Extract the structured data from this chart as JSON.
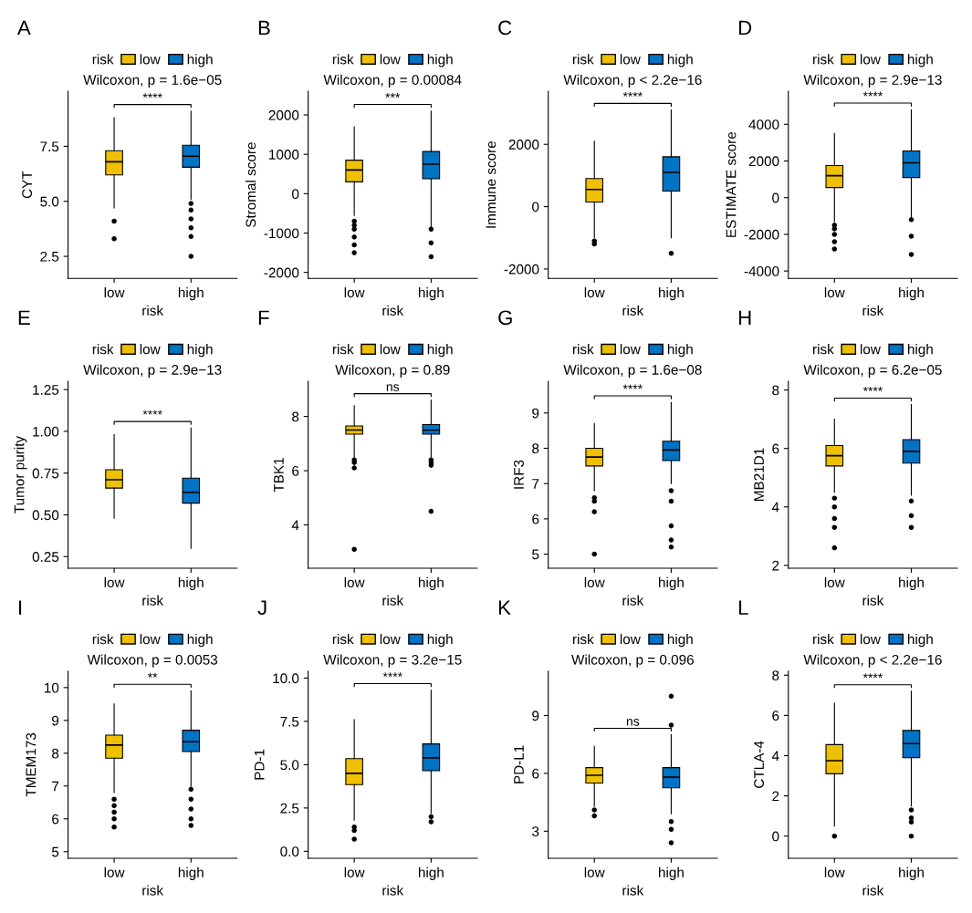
{
  "chart_data": [
    {
      "type": "box",
      "title": "A",
      "subtitle": "Wilcoxon, p = 1.6e−05",
      "xlabel": "risk",
      "ylabel": "CYT",
      "legend_title": "risk",
      "legend": "top",
      "categories": [
        "low",
        "high"
      ],
      "ylim": [
        1.5,
        10.0
      ],
      "yticks": [
        2.5,
        {
          "value": 5,
          "label": "5.0"
        },
        7.5
      ],
      "annotations": [
        "****"
      ],
      "series": [
        {
          "name": "low",
          "color": "#efc000",
          "boxes": [
            {
              "low": 4.7,
              "q1": 6.2,
              "median": 6.8,
              "q3": 7.3,
              "high": 8.8,
              "outliers": [
                4.1,
                3.3
              ]
            },
            null
          ]
        },
        {
          "name": "high",
          "color": "#0073c2",
          "boxes": [
            null,
            {
              "low": 5.1,
              "q1": 6.55,
              "median": 7.05,
              "q3": 7.55,
              "high": 9.1,
              "outliers": [
                4.9,
                4.6,
                4.2,
                3.8,
                3.4,
                2.5
              ]
            }
          ]
        }
      ]
    },
    {
      "type": "box",
      "title": "B",
      "subtitle": "Wilcoxon, p = 0.00084",
      "xlabel": "risk",
      "ylabel": "Stromal score",
      "legend_title": "risk",
      "legend": "top",
      "categories": [
        "low",
        "high"
      ],
      "ylim": [
        -2150,
        2600
      ],
      "yticks": [
        -2000,
        -1000,
        0,
        1000,
        2000
      ],
      "annotations": [
        "***"
      ],
      "series": [
        {
          "name": "low",
          "color": "#efc000",
          "boxes": [
            {
              "low": -550,
              "q1": 300,
              "median": 600,
              "q3": 850,
              "high": 1700,
              "outliers": [
                -700,
                -800,
                -900,
                -1100,
                -1300,
                -1500
              ]
            },
            null
          ]
        },
        {
          "name": "high",
          "color": "#0073c2",
          "boxes": [
            null,
            {
              "low": -850,
              "q1": 380,
              "median": 750,
              "q3": 1070,
              "high": 2100,
              "outliers": [
                -900,
                -1250,
                -1600
              ]
            }
          ]
        }
      ]
    },
    {
      "type": "box",
      "title": "C",
      "subtitle": "Wilcoxon, p < 2.2e−16",
      "xlabel": "risk",
      "ylabel": "Immune score",
      "legend_title": "risk",
      "legend": "top",
      "categories": [
        "low",
        "high"
      ],
      "ylim": [
        -2300,
        3700
      ],
      "yticks": [
        -2000,
        0,
        2000
      ],
      "annotations": [
        "****"
      ],
      "series": [
        {
          "name": "low",
          "color": "#efc000",
          "boxes": [
            {
              "low": -1000,
              "q1": 150,
              "median": 550,
              "q3": 900,
              "high": 2100,
              "outliers": [
                -1100,
                -1200
              ]
            },
            null
          ]
        },
        {
          "name": "high",
          "color": "#0073c2",
          "boxes": [
            null,
            {
              "low": -1000,
              "q1": 500,
              "median": 1100,
              "q3": 1600,
              "high": 3100,
              "outliers": [
                -1500
              ]
            }
          ]
        }
      ]
    },
    {
      "type": "box",
      "title": "D",
      "subtitle": "Wilcoxon, p = 2.9e−13",
      "xlabel": "risk",
      "ylabel": "ESTIMATE score",
      "legend_title": "risk",
      "legend": "top",
      "categories": [
        "low",
        "high"
      ],
      "ylim": [
        -4400,
        5800
      ],
      "yticks": [
        -4000,
        -2000,
        0,
        2000,
        4000
      ],
      "annotations": [
        "****"
      ],
      "series": [
        {
          "name": "low",
          "color": "#efc000",
          "boxes": [
            {
              "low": -1300,
              "q1": 550,
              "median": 1200,
              "q3": 1750,
              "high": 3500,
              "outliers": [
                -1500,
                -1700,
                -2000,
                -2400,
                -2800
              ]
            },
            null
          ]
        },
        {
          "name": "high",
          "color": "#0073c2",
          "boxes": [
            null,
            {
              "low": -1100,
              "q1": 1100,
              "median": 1900,
              "q3": 2550,
              "high": 4800,
              "outliers": [
                -1200,
                -2100,
                -3100
              ]
            }
          ]
        }
      ]
    },
    {
      "type": "box",
      "title": "E",
      "subtitle": "Wilcoxon, p = 2.9e−13",
      "xlabel": "risk",
      "ylabel": "Tumor purity",
      "legend_title": "risk",
      "legend": "top",
      "categories": [
        "low",
        "high"
      ],
      "ylim": [
        0.18,
        1.3
      ],
      "yticks": [
        0.25,
        {
          "value": 0.5,
          "label": "0.50"
        },
        0.75,
        {
          "value": 1,
          "label": "1.00"
        },
        1.25
      ],
      "annotations": [
        "****"
      ],
      "series": [
        {
          "name": "low",
          "color": "#efc000",
          "boxes": [
            {
              "low": 0.48,
              "q1": 0.66,
              "median": 0.71,
              "q3": 0.77,
              "high": 0.98
            },
            null
          ]
        },
        {
          "name": "high",
          "color": "#0073c2",
          "boxes": [
            null,
            {
              "low": 0.3,
              "q1": 0.57,
              "median": 0.635,
              "q3": 0.72,
              "high": 1.02
            }
          ]
        }
      ]
    },
    {
      "type": "box",
      "title": "F",
      "subtitle": "Wilcoxon, p = 0.89",
      "xlabel": "risk",
      "ylabel": "TBK1",
      "legend_title": "risk",
      "legend": "top",
      "categories": [
        "low",
        "high"
      ],
      "ylim": [
        2.4,
        9.3
      ],
      "yticks": [
        4,
        6,
        8
      ],
      "annotations": [
        "ns"
      ],
      "series": [
        {
          "name": "low",
          "color": "#efc000",
          "boxes": [
            {
              "low": 6.5,
              "q1": 7.35,
              "median": 7.5,
              "q3": 7.65,
              "high": 8.4,
              "outliers": [
                6.4,
                6.3,
                6.1,
                3.1
              ]
            },
            null
          ]
        },
        {
          "name": "high",
          "color": "#0073c2",
          "boxes": [
            null,
            {
              "low": 6.5,
              "q1": 7.35,
              "median": 7.5,
              "q3": 7.7,
              "high": 8.6,
              "outliers": [
                6.4,
                6.3,
                6.2,
                4.5
              ]
            }
          ]
        }
      ]
    },
    {
      "type": "box",
      "title": "G",
      "subtitle": "Wilcoxon, p = 1.6e−08",
      "xlabel": "risk",
      "ylabel": "IRF3",
      "legend_title": "risk",
      "legend": "top",
      "categories": [
        "low",
        "high"
      ],
      "ylim": [
        4.6,
        9.9
      ],
      "yticks": [
        5,
        6,
        7,
        8,
        9
      ],
      "annotations": [
        "****"
      ],
      "series": [
        {
          "name": "low",
          "color": "#efc000",
          "boxes": [
            {
              "low": 6.8,
              "q1": 7.5,
              "median": 7.75,
              "q3": 8.0,
              "high": 8.7,
              "outliers": [
                6.6,
                6.5,
                6.2,
                5.0
              ]
            },
            null
          ]
        },
        {
          "name": "high",
          "color": "#0073c2",
          "boxes": [
            null,
            {
              "low": 7.0,
              "q1": 7.65,
              "median": 7.95,
              "q3": 8.2,
              "high": 9.3,
              "outliers": [
                6.8,
                6.5,
                5.8,
                5.4,
                5.2
              ]
            }
          ]
        }
      ]
    },
    {
      "type": "box",
      "title": "H",
      "subtitle": "Wilcoxon, p = 6.2e−05",
      "xlabel": "risk",
      "ylabel": "MB21D1",
      "legend_title": "risk",
      "legend": "top",
      "categories": [
        "low",
        "high"
      ],
      "ylim": [
        1.9,
        8.3
      ],
      "yticks": [
        2,
        4,
        6,
        8
      ],
      "annotations": [
        "****"
      ],
      "series": [
        {
          "name": "low",
          "color": "#efc000",
          "boxes": [
            {
              "low": 4.5,
              "q1": 5.4,
              "median": 5.75,
              "q3": 6.1,
              "high": 7.0,
              "outliers": [
                4.3,
                4.0,
                3.6,
                3.3,
                2.6
              ]
            },
            null
          ]
        },
        {
          "name": "high",
          "color": "#0073c2",
          "boxes": [
            null,
            {
              "low": 4.4,
              "q1": 5.5,
              "median": 5.9,
              "q3": 6.3,
              "high": 7.5,
              "outliers": [
                4.2,
                3.7,
                3.3
              ]
            }
          ]
        }
      ]
    },
    {
      "type": "box",
      "title": "I",
      "subtitle": "Wilcoxon, p = 0.0053",
      "xlabel": "risk",
      "ylabel": "TMEM173",
      "legend_title": "risk",
      "legend": "top",
      "categories": [
        "low",
        "high"
      ],
      "ylim": [
        4.8,
        10.5
      ],
      "yticks": [
        5,
        6,
        7,
        8,
        9,
        10
      ],
      "annotations": [
        "**"
      ],
      "series": [
        {
          "name": "low",
          "color": "#efc000",
          "boxes": [
            {
              "low": 6.8,
              "q1": 7.85,
              "median": 8.25,
              "q3": 8.55,
              "high": 9.5,
              "outliers": [
                6.6,
                6.4,
                6.2,
                6.0,
                5.75
              ]
            },
            null
          ]
        },
        {
          "name": "high",
          "color": "#0073c2",
          "boxes": [
            null,
            {
              "low": 7.0,
              "q1": 8.05,
              "median": 8.35,
              "q3": 8.7,
              "high": 9.9,
              "outliers": [
                6.9,
                6.6,
                6.3,
                6.0,
                5.8
              ]
            }
          ]
        }
      ]
    },
    {
      "type": "box",
      "title": "J",
      "subtitle": "Wilcoxon, p = 3.2e−15",
      "xlabel": "risk",
      "ylabel": "PD-1",
      "legend_title": "risk",
      "legend": "top",
      "categories": [
        "low",
        "high"
      ],
      "ylim": [
        -0.4,
        10.4
      ],
      "yticks": [
        {
          "value": 0,
          "label": "0.0"
        },
        2.5,
        {
          "value": 5,
          "label": "5.0"
        },
        7.5,
        {
          "value": 10,
          "label": "10.0"
        }
      ],
      "annotations": [
        "****"
      ],
      "series": [
        {
          "name": "low",
          "color": "#efc000",
          "boxes": [
            {
              "low": 1.8,
              "q1": 3.85,
              "median": 4.5,
              "q3": 5.35,
              "high": 7.6,
              "outliers": [
                1.4,
                1.2,
                0.7
              ]
            },
            null
          ]
        },
        {
          "name": "high",
          "color": "#0073c2",
          "boxes": [
            null,
            {
              "low": 2.2,
              "q1": 4.65,
              "median": 5.4,
              "q3": 6.2,
              "high": 9.3,
              "outliers": [
                2.0,
                1.7
              ]
            }
          ]
        }
      ]
    },
    {
      "type": "box",
      "title": "K",
      "subtitle": "Wilcoxon, p = 0.096",
      "xlabel": "risk",
      "ylabel": "PD-L1",
      "legend_title": "risk",
      "legend": "top",
      "categories": [
        "low",
        "high"
      ],
      "ylim": [
        1.6,
        11.3
      ],
      "yticks": [
        3,
        6,
        9
      ],
      "annotations": [
        "ns"
      ],
      "series": [
        {
          "name": "low",
          "color": "#efc000",
          "boxes": [
            {
              "low": 4.3,
              "q1": 5.5,
              "median": 5.9,
              "q3": 6.3,
              "high": 7.4,
              "outliers": [
                4.1,
                3.8
              ]
            },
            null
          ]
        },
        {
          "name": "high",
          "color": "#0073c2",
          "boxes": [
            null,
            {
              "low": 3.9,
              "q1": 5.25,
              "median": 5.8,
              "q3": 6.3,
              "high": 8.0,
              "outliers": [
                8.5,
                10.0,
                3.5,
                3.1,
                2.4
              ]
            }
          ]
        }
      ]
    },
    {
      "type": "box",
      "title": "L",
      "subtitle": "Wilcoxon, p < 2.2e−16",
      "xlabel": "risk",
      "ylabel": "CTLA-4",
      "legend_title": "risk",
      "legend": "top",
      "categories": [
        "low",
        "high"
      ],
      "ylim": [
        -1.1,
        8.2
      ],
      "yticks": [
        0,
        2,
        4,
        6,
        8
      ],
      "annotations": [
        "****"
      ],
      "series": [
        {
          "name": "low",
          "color": "#efc000",
          "boxes": [
            {
              "low": 0.5,
              "q1": 3.1,
              "median": 3.75,
              "q3": 4.55,
              "high": 6.6,
              "outliers": [
                0.0
              ]
            },
            null
          ]
        },
        {
          "name": "high",
          "color": "#0073c2",
          "boxes": [
            null,
            {
              "low": 1.5,
              "q1": 3.9,
              "median": 4.6,
              "q3": 5.25,
              "high": 7.2,
              "outliers": [
                1.3,
                0.9,
                0.7,
                0.0
              ]
            }
          ]
        }
      ]
    }
  ]
}
